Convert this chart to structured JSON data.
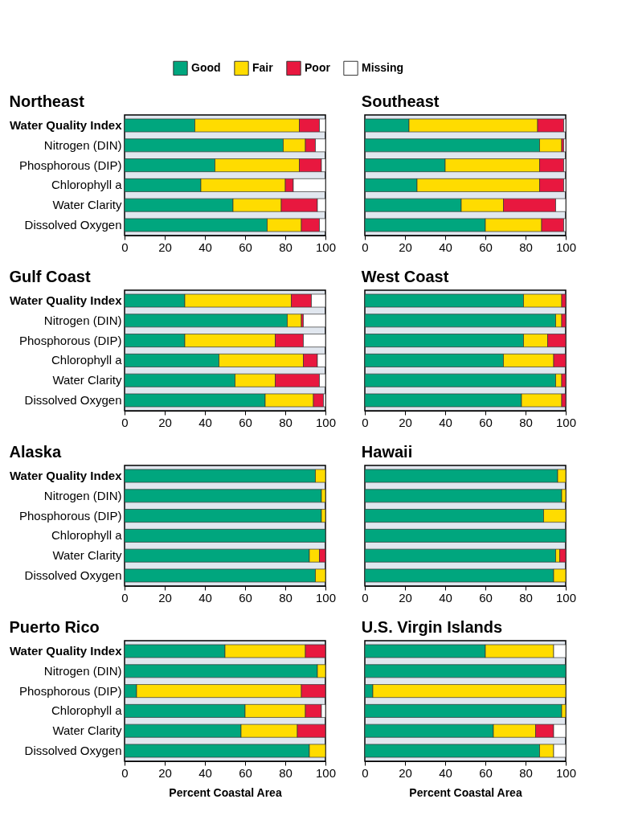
{
  "chart_data": [
    {
      "type": "bar",
      "orientation": "horizontal",
      "stacked": true,
      "title": "Northeast",
      "legend": "top",
      "grid": false,
      "categories": [
        "Water Quality Index",
        "Nitrogen (DIN)",
        "Phosphorous (DIP)",
        "Chlorophyll a",
        "Water Clarity",
        "Dissolved Oxygen"
      ],
      "series": [
        {
          "name": "Good",
          "color": "#00a67e",
          "values": [
            35,
            79,
            45,
            38,
            54,
            71
          ]
        },
        {
          "name": "Fair",
          "color": "#ffdc00",
          "values": [
            52,
            11,
            42,
            42,
            24,
            17
          ]
        },
        {
          "name": "Poor",
          "color": "#e8183f",
          "values": [
            10,
            5,
            11,
            4,
            18,
            9
          ]
        },
        {
          "name": "Missing",
          "color": "#ffffff",
          "values": [
            3,
            5,
            2,
            16,
            4,
            3
          ]
        }
      ],
      "xlim": [
        0,
        100
      ],
      "xticks": [
        0,
        20,
        40,
        60,
        80,
        100
      ]
    },
    {
      "type": "bar",
      "orientation": "horizontal",
      "stacked": true,
      "title": "Southeast",
      "grid": false,
      "tick_labels": "x",
      "categories": [
        "Water Quality Index",
        "Nitrogen (DIN)",
        "Phosphorous (DIP)",
        "Chlorophyll a",
        "Water Clarity",
        "Dissolved Oxygen"
      ],
      "series": [
        {
          "name": "Good",
          "color": "#00a67e",
          "values": [
            22,
            87,
            40,
            26,
            48,
            60
          ]
        },
        {
          "name": "Fair",
          "color": "#ffdc00",
          "values": [
            64,
            11,
            47,
            61,
            21,
            28
          ]
        },
        {
          "name": "Poor",
          "color": "#e8183f",
          "values": [
            13,
            1,
            12,
            12,
            26,
            11
          ]
        },
        {
          "name": "Missing",
          "color": "#ffffff",
          "values": [
            1,
            1,
            1,
            1,
            5,
            1
          ]
        }
      ],
      "xlim": [
        0,
        100
      ],
      "xticks": [
        0,
        20,
        40,
        60,
        80,
        100
      ]
    },
    {
      "type": "bar",
      "orientation": "horizontal",
      "stacked": true,
      "title": "Gulf Coast",
      "grid": false,
      "categories": [
        "Water Quality Index",
        "Nitrogen (DIN)",
        "Phosphorous (DIP)",
        "Chlorophyll a",
        "Water Clarity",
        "Dissolved Oxygen"
      ],
      "series": [
        {
          "name": "Good",
          "color": "#00a67e",
          "values": [
            30,
            81,
            30,
            47,
            55,
            70
          ]
        },
        {
          "name": "Fair",
          "color": "#ffdc00",
          "values": [
            53,
            7,
            45,
            42,
            20,
            24
          ]
        },
        {
          "name": "Poor",
          "color": "#e8183f",
          "values": [
            10,
            1,
            14,
            7,
            22,
            5
          ]
        },
        {
          "name": "Missing",
          "color": "#ffffff",
          "values": [
            7,
            11,
            11,
            4,
            3,
            1
          ]
        }
      ],
      "xlim": [
        0,
        100
      ],
      "xticks": [
        0,
        20,
        40,
        60,
        80,
        100
      ]
    },
    {
      "type": "bar",
      "orientation": "horizontal",
      "stacked": true,
      "title": "West Coast",
      "grid": false,
      "tick_labels": "x",
      "categories": [
        "Water Quality Index",
        "Nitrogen (DIN)",
        "Phosphorous (DIP)",
        "Chlorophyll a",
        "Water Clarity",
        "Dissolved Oxygen"
      ],
      "series": [
        {
          "name": "Good",
          "color": "#00a67e",
          "values": [
            79,
            95,
            79,
            69,
            95,
            78
          ]
        },
        {
          "name": "Fair",
          "color": "#ffdc00",
          "values": [
            19,
            3,
            12,
            25,
            3,
            20
          ]
        },
        {
          "name": "Poor",
          "color": "#e8183f",
          "values": [
            2,
            2,
            9,
            6,
            2,
            2
          ]
        },
        {
          "name": "Missing",
          "color": "#ffffff",
          "values": [
            null,
            null,
            null,
            null,
            null,
            null
          ]
        }
      ],
      "xlim": [
        0,
        100
      ],
      "xticks": [
        0,
        20,
        40,
        60,
        80,
        100
      ]
    },
    {
      "type": "bar",
      "orientation": "horizontal",
      "stacked": true,
      "title": "Alaska",
      "grid": false,
      "categories": [
        "Water Quality Index",
        "Nitrogen (DIN)",
        "Phosphorous (DIP)",
        "Chlorophyll a",
        "Water Clarity",
        "Dissolved Oxygen"
      ],
      "series": [
        {
          "name": "Good",
          "color": "#00a67e",
          "values": [
            95,
            98,
            98,
            100,
            92,
            95
          ]
        },
        {
          "name": "Fair",
          "color": "#ffdc00",
          "values": [
            5,
            2,
            2,
            null,
            5,
            5
          ]
        },
        {
          "name": "Poor",
          "color": "#e8183f",
          "values": [
            null,
            null,
            null,
            null,
            3,
            null
          ]
        },
        {
          "name": "Missing",
          "color": "#ffffff",
          "values": [
            null,
            null,
            null,
            null,
            null,
            null
          ]
        }
      ],
      "xlim": [
        0,
        100
      ],
      "xticks": [
        0,
        20,
        40,
        60,
        80,
        100
      ]
    },
    {
      "type": "bar",
      "orientation": "horizontal",
      "stacked": true,
      "title": "Hawaii",
      "grid": false,
      "tick_labels": "x",
      "categories": [
        "Water Quality Index",
        "Nitrogen (DIN)",
        "Phosphorous (DIP)",
        "Chlorophyll a",
        "Water Clarity",
        "Dissolved Oxygen"
      ],
      "series": [
        {
          "name": "Good",
          "color": "#00a67e",
          "values": [
            96,
            98,
            89,
            100,
            95,
            94
          ]
        },
        {
          "name": "Fair",
          "color": "#ffdc00",
          "values": [
            4,
            2,
            11,
            null,
            2,
            6
          ]
        },
        {
          "name": "Poor",
          "color": "#e8183f",
          "values": [
            null,
            null,
            null,
            null,
            3,
            null
          ]
        },
        {
          "name": "Missing",
          "color": "#ffffff",
          "values": [
            null,
            null,
            null,
            null,
            null,
            null
          ]
        }
      ],
      "xlim": [
        0,
        100
      ],
      "xticks": [
        0,
        20,
        40,
        60,
        80,
        100
      ]
    },
    {
      "type": "bar",
      "orientation": "horizontal",
      "stacked": true,
      "title": "Puerto Rico",
      "grid": false,
      "xlabel": "Percent Coastal Area",
      "categories": [
        "Water Quality Index",
        "Nitrogen (DIN)",
        "Phosphorous (DIP)",
        "Chlorophyll a",
        "Water Clarity",
        "Dissolved Oxygen"
      ],
      "series": [
        {
          "name": "Good",
          "color": "#00a67e",
          "values": [
            50,
            96,
            6,
            60,
            58,
            92
          ]
        },
        {
          "name": "Fair",
          "color": "#ffdc00",
          "values": [
            40,
            4,
            82,
            30,
            28,
            8
          ]
        },
        {
          "name": "Poor",
          "color": "#e8183f",
          "values": [
            10,
            null,
            12,
            8,
            14,
            null
          ]
        },
        {
          "name": "Missing",
          "color": "#ffffff",
          "values": [
            null,
            null,
            null,
            2,
            null,
            null
          ]
        }
      ],
      "xlim": [
        0,
        100
      ],
      "xticks": [
        0,
        20,
        40,
        60,
        80,
        100
      ]
    },
    {
      "type": "bar",
      "orientation": "horizontal",
      "stacked": true,
      "title": "U.S. Virgin Islands",
      "grid": false,
      "tick_labels": "x",
      "xlabel": "Percent Coastal Area",
      "categories": [
        "Water Quality Index",
        "Nitrogen (DIN)",
        "Phosphorous (DIP)",
        "Chlorophyll a",
        "Water Clarity",
        "Dissolved Oxygen"
      ],
      "series": [
        {
          "name": "Good",
          "color": "#00a67e",
          "values": [
            60,
            100,
            4,
            98,
            64,
            87
          ]
        },
        {
          "name": "Fair",
          "color": "#ffdc00",
          "values": [
            34,
            null,
            96,
            2,
            21,
            7
          ]
        },
        {
          "name": "Poor",
          "color": "#e8183f",
          "values": [
            null,
            null,
            null,
            null,
            9,
            null
          ]
        },
        {
          "name": "Missing",
          "color": "#ffffff",
          "values": [
            6,
            null,
            null,
            null,
            6,
            6
          ]
        }
      ],
      "xlim": [
        0,
        100
      ],
      "xticks": [
        0,
        20,
        40,
        60,
        80,
        100
      ]
    }
  ]
}
